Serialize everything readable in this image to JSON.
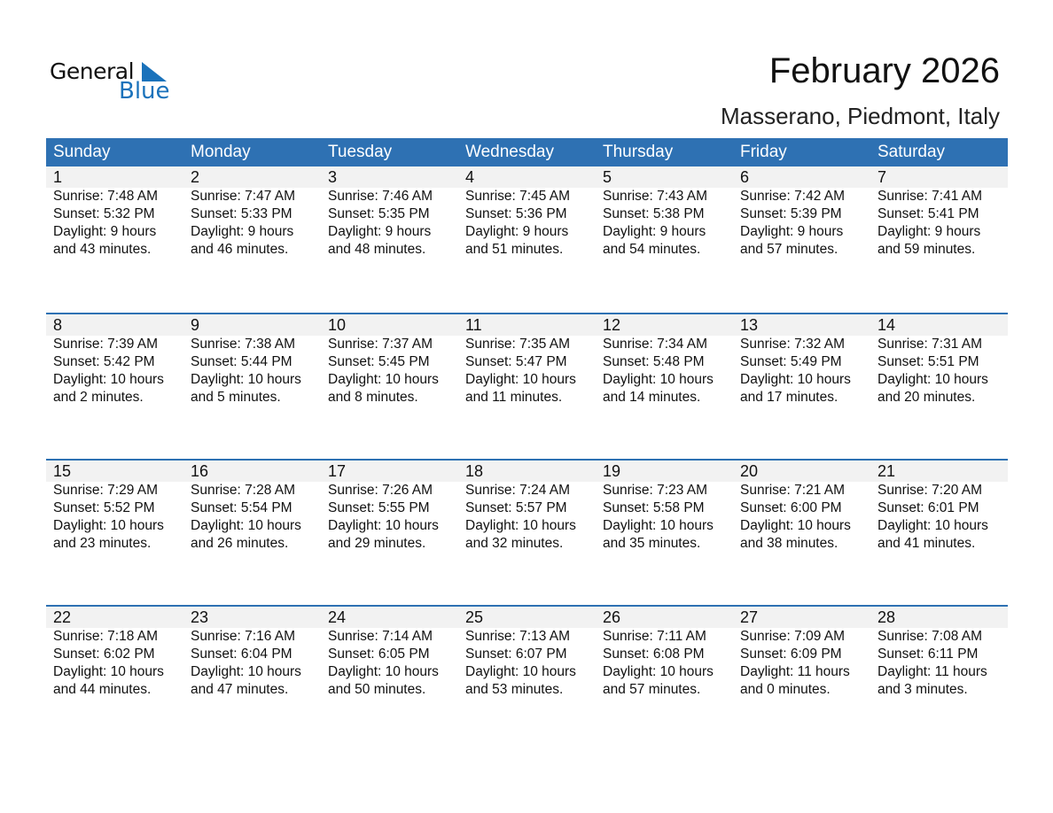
{
  "logo": {
    "text1": "General",
    "text2": "Blue"
  },
  "title": "February 2026",
  "subtitle": "Masserano, Piedmont, Italy",
  "colors": {
    "header": "#2e71b3",
    "band": "#f2f2f2",
    "logo_blue": "#1a72bb"
  },
  "weekdays": [
    "Sunday",
    "Monday",
    "Tuesday",
    "Wednesday",
    "Thursday",
    "Friday",
    "Saturday"
  ],
  "weeks": [
    [
      {
        "day": "1",
        "sunrise": "Sunrise: 7:48 AM",
        "sunset": "Sunset: 5:32 PM",
        "daylight1": "Daylight: 9 hours",
        "daylight2": "and 43 minutes."
      },
      {
        "day": "2",
        "sunrise": "Sunrise: 7:47 AM",
        "sunset": "Sunset: 5:33 PM",
        "daylight1": "Daylight: 9 hours",
        "daylight2": "and 46 minutes."
      },
      {
        "day": "3",
        "sunrise": "Sunrise: 7:46 AM",
        "sunset": "Sunset: 5:35 PM",
        "daylight1": "Daylight: 9 hours",
        "daylight2": "and 48 minutes."
      },
      {
        "day": "4",
        "sunrise": "Sunrise: 7:45 AM",
        "sunset": "Sunset: 5:36 PM",
        "daylight1": "Daylight: 9 hours",
        "daylight2": "and 51 minutes."
      },
      {
        "day": "5",
        "sunrise": "Sunrise: 7:43 AM",
        "sunset": "Sunset: 5:38 PM",
        "daylight1": "Daylight: 9 hours",
        "daylight2": "and 54 minutes."
      },
      {
        "day": "6",
        "sunrise": "Sunrise: 7:42 AM",
        "sunset": "Sunset: 5:39 PM",
        "daylight1": "Daylight: 9 hours",
        "daylight2": "and 57 minutes."
      },
      {
        "day": "7",
        "sunrise": "Sunrise: 7:41 AM",
        "sunset": "Sunset: 5:41 PM",
        "daylight1": "Daylight: 9 hours",
        "daylight2": "and 59 minutes."
      }
    ],
    [
      {
        "day": "8",
        "sunrise": "Sunrise: 7:39 AM",
        "sunset": "Sunset: 5:42 PM",
        "daylight1": "Daylight: 10 hours",
        "daylight2": "and 2 minutes."
      },
      {
        "day": "9",
        "sunrise": "Sunrise: 7:38 AM",
        "sunset": "Sunset: 5:44 PM",
        "daylight1": "Daylight: 10 hours",
        "daylight2": "and 5 minutes."
      },
      {
        "day": "10",
        "sunrise": "Sunrise: 7:37 AM",
        "sunset": "Sunset: 5:45 PM",
        "daylight1": "Daylight: 10 hours",
        "daylight2": "and 8 minutes."
      },
      {
        "day": "11",
        "sunrise": "Sunrise: 7:35 AM",
        "sunset": "Sunset: 5:47 PM",
        "daylight1": "Daylight: 10 hours",
        "daylight2": "and 11 minutes."
      },
      {
        "day": "12",
        "sunrise": "Sunrise: 7:34 AM",
        "sunset": "Sunset: 5:48 PM",
        "daylight1": "Daylight: 10 hours",
        "daylight2": "and 14 minutes."
      },
      {
        "day": "13",
        "sunrise": "Sunrise: 7:32 AM",
        "sunset": "Sunset: 5:49 PM",
        "daylight1": "Daylight: 10 hours",
        "daylight2": "and 17 minutes."
      },
      {
        "day": "14",
        "sunrise": "Sunrise: 7:31 AM",
        "sunset": "Sunset: 5:51 PM",
        "daylight1": "Daylight: 10 hours",
        "daylight2": "and 20 minutes."
      }
    ],
    [
      {
        "day": "15",
        "sunrise": "Sunrise: 7:29 AM",
        "sunset": "Sunset: 5:52 PM",
        "daylight1": "Daylight: 10 hours",
        "daylight2": "and 23 minutes."
      },
      {
        "day": "16",
        "sunrise": "Sunrise: 7:28 AM",
        "sunset": "Sunset: 5:54 PM",
        "daylight1": "Daylight: 10 hours",
        "daylight2": "and 26 minutes."
      },
      {
        "day": "17",
        "sunrise": "Sunrise: 7:26 AM",
        "sunset": "Sunset: 5:55 PM",
        "daylight1": "Daylight: 10 hours",
        "daylight2": "and 29 minutes."
      },
      {
        "day": "18",
        "sunrise": "Sunrise: 7:24 AM",
        "sunset": "Sunset: 5:57 PM",
        "daylight1": "Daylight: 10 hours",
        "daylight2": "and 32 minutes."
      },
      {
        "day": "19",
        "sunrise": "Sunrise: 7:23 AM",
        "sunset": "Sunset: 5:58 PM",
        "daylight1": "Daylight: 10 hours",
        "daylight2": "and 35 minutes."
      },
      {
        "day": "20",
        "sunrise": "Sunrise: 7:21 AM",
        "sunset": "Sunset: 6:00 PM",
        "daylight1": "Daylight: 10 hours",
        "daylight2": "and 38 minutes."
      },
      {
        "day": "21",
        "sunrise": "Sunrise: 7:20 AM",
        "sunset": "Sunset: 6:01 PM",
        "daylight1": "Daylight: 10 hours",
        "daylight2": "and 41 minutes."
      }
    ],
    [
      {
        "day": "22",
        "sunrise": "Sunrise: 7:18 AM",
        "sunset": "Sunset: 6:02 PM",
        "daylight1": "Daylight: 10 hours",
        "daylight2": "and 44 minutes."
      },
      {
        "day": "23",
        "sunrise": "Sunrise: 7:16 AM",
        "sunset": "Sunset: 6:04 PM",
        "daylight1": "Daylight: 10 hours",
        "daylight2": "and 47 minutes."
      },
      {
        "day": "24",
        "sunrise": "Sunrise: 7:14 AM",
        "sunset": "Sunset: 6:05 PM",
        "daylight1": "Daylight: 10 hours",
        "daylight2": "and 50 minutes."
      },
      {
        "day": "25",
        "sunrise": "Sunrise: 7:13 AM",
        "sunset": "Sunset: 6:07 PM",
        "daylight1": "Daylight: 10 hours",
        "daylight2": "and 53 minutes."
      },
      {
        "day": "26",
        "sunrise": "Sunrise: 7:11 AM",
        "sunset": "Sunset: 6:08 PM",
        "daylight1": "Daylight: 10 hours",
        "daylight2": "and 57 minutes."
      },
      {
        "day": "27",
        "sunrise": "Sunrise: 7:09 AM",
        "sunset": "Sunset: 6:09 PM",
        "daylight1": "Daylight: 11 hours",
        "daylight2": "and 0 minutes."
      },
      {
        "day": "28",
        "sunrise": "Sunrise: 7:08 AM",
        "sunset": "Sunset: 6:11 PM",
        "daylight1": "Daylight: 11 hours",
        "daylight2": "and 3 minutes."
      }
    ]
  ]
}
